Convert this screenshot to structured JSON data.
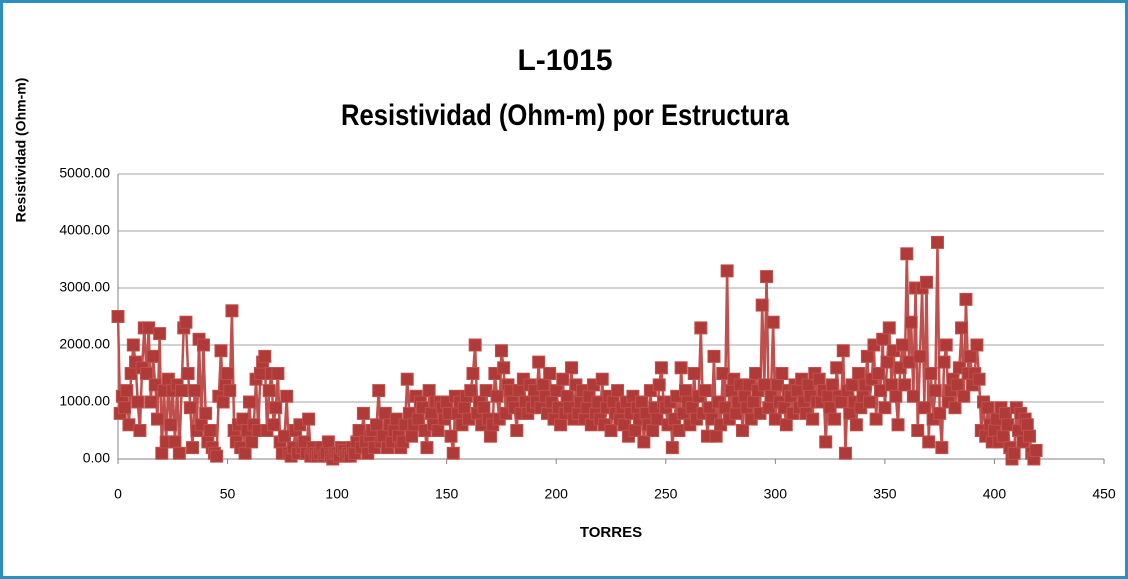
{
  "chart_data": {
    "type": "line",
    "title": "L-1015",
    "subtitle": "Resistividad (Ohm-m) por Estructura",
    "y_label": "Resistividad (Ohm-m)",
    "x_label": "TORRES",
    "xlim": [
      0,
      450
    ],
    "xticks": [
      0,
      50,
      100,
      150,
      200,
      250,
      300,
      350,
      400,
      450
    ],
    "ylim": [
      0,
      5000
    ],
    "yticks": [
      {
        "value": 0,
        "label": "0.00"
      },
      {
        "value": 1000,
        "label": "1000.00"
      },
      {
        "value": 2000,
        "label": "2000.00"
      },
      {
        "value": 3000,
        "label": "3000.00"
      },
      {
        "value": 4000,
        "label": "4000.00"
      },
      {
        "value": 5000,
        "label": "5000.00"
      }
    ],
    "grid": true,
    "x": [
      0,
      1,
      2,
      3,
      4,
      5,
      6,
      7,
      8,
      9,
      10,
      11,
      12,
      13,
      14,
      15,
      16,
      17,
      18,
      19,
      20,
      21,
      22,
      23,
      24,
      25,
      26,
      27,
      28,
      29,
      30,
      31,
      32,
      33,
      34,
      35,
      36,
      37,
      38,
      39,
      40,
      41,
      42,
      43,
      44,
      45,
      46,
      47,
      48,
      49,
      50,
      51,
      52,
      53,
      54,
      55,
      56,
      57,
      58,
      59,
      60,
      61,
      62,
      63,
      64,
      65,
      66,
      67,
      68,
      69,
      70,
      71,
      72,
      73,
      74,
      75,
      76,
      77,
      78,
      79,
      80,
      81,
      82,
      83,
      84,
      85,
      86,
      87,
      88,
      89,
      90,
      91,
      92,
      93,
      94,
      95,
      96,
      97,
      98,
      99,
      100,
      101,
      102,
      103,
      104,
      105,
      106,
      107,
      108,
      109,
      110,
      111,
      112,
      113,
      114,
      115,
      116,
      117,
      118,
      119,
      120,
      121,
      122,
      123,
      124,
      125,
      126,
      127,
      128,
      129,
      130,
      131,
      132,
      133,
      134,
      135,
      136,
      137,
      138,
      139,
      140,
      141,
      142,
      143,
      144,
      145,
      146,
      147,
      148,
      149,
      150,
      151,
      152,
      153,
      154,
      155,
      156,
      157,
      158,
      159,
      160,
      161,
      162,
      163,
      164,
      165,
      166,
      167,
      168,
      169,
      170,
      171,
      172,
      173,
      174,
      175,
      176,
      177,
      178,
      179,
      180,
      181,
      182,
      183,
      184,
      185,
      186,
      187,
      188,
      189,
      190,
      191,
      192,
      193,
      194,
      195,
      196,
      197,
      198,
      199,
      200,
      201,
      202,
      203,
      204,
      205,
      206,
      207,
      208,
      209,
      210,
      211,
      212,
      213,
      214,
      215,
      216,
      217,
      218,
      219,
      220,
      221,
      222,
      223,
      224,
      225,
      226,
      227,
      228,
      229,
      230,
      231,
      232,
      233,
      234,
      235,
      236,
      237,
      238,
      239,
      240,
      241,
      242,
      243,
      244,
      245,
      246,
      247,
      248,
      249,
      250,
      251,
      252,
      253,
      254,
      255,
      256,
      257,
      258,
      259,
      260,
      261,
      262,
      263,
      264,
      265,
      266,
      267,
      268,
      269,
      270,
      271,
      272,
      273,
      274,
      275,
      276,
      277,
      278,
      279,
      280,
      281,
      282,
      283,
      284,
      285,
      286,
      287,
      288,
      289,
      290,
      291,
      292,
      293,
      294,
      295,
      296,
      297,
      298,
      299,
      300,
      301,
      302,
      303,
      304,
      305,
      306,
      307,
      308,
      309,
      310,
      311,
      312,
      313,
      314,
      315,
      316,
      317,
      318,
      319,
      320,
      321,
      322,
      323,
      324,
      325,
      326,
      327,
      328,
      329,
      330,
      331,
      332,
      333,
      334,
      335,
      336,
      337,
      338,
      339,
      340,
      341,
      342,
      343,
      344,
      345,
      346,
      347,
      348,
      349,
      350,
      351,
      352,
      353,
      354,
      355,
      356,
      357,
      358,
      359,
      360,
      361,
      362,
      363,
      364,
      365,
      366,
      367,
      368,
      369,
      370,
      371,
      372,
      373,
      374,
      375,
      376,
      377,
      378,
      379,
      380,
      381,
      382,
      383,
      384,
      385,
      386,
      387,
      388,
      389,
      390,
      391,
      392,
      393,
      394,
      395,
      396,
      397,
      398,
      399,
      400,
      401,
      402,
      403,
      404,
      405,
      406,
      407,
      408,
      409,
      410,
      411,
      412,
      413,
      414,
      415,
      416,
      417,
      418,
      419
    ],
    "series": [
      {
        "name": "Resistividad",
        "color": "#c0504d",
        "marker_color": "#b03a37",
        "values": [
          2500,
          800,
          1100,
          900,
          1200,
          600,
          1500,
          2000,
          1700,
          1000,
          500,
          1600,
          2300,
          1500,
          2300,
          1000,
          1800,
          1300,
          700,
          2200,
          100,
          1200,
          300,
          1400,
          600,
          1200,
          300,
          1300,
          100,
          1200,
          2300,
          2400,
          1500,
          900,
          200,
          1200,
          500,
          2100,
          600,
          2000,
          800,
          300,
          500,
          200,
          100,
          50,
          1100,
          1900,
          1000,
          1300,
          1500,
          1200,
          2600,
          500,
          300,
          600,
          200,
          700,
          100,
          500,
          1000,
          300,
          600,
          1400,
          500,
          1500,
          1700,
          1800,
          500,
          1200,
          1500,
          600,
          900,
          1500,
          300,
          100,
          400,
          1100,
          100,
          50,
          200,
          500,
          100,
          600,
          200,
          300,
          100,
          700,
          50,
          200,
          100,
          50,
          100,
          200,
          50,
          100,
          300,
          50,
          0,
          100,
          100,
          50,
          200,
          150,
          50,
          100,
          50,
          200,
          100,
          300,
          500,
          200,
          800,
          300,
          100,
          400,
          500,
          200,
          600,
          1200,
          300,
          400,
          800,
          200,
          600,
          300,
          500,
          700,
          400,
          200,
          300,
          600,
          1400,
          800,
          400,
          600,
          1100,
          700,
          1000,
          900,
          500,
          200,
          1200,
          800,
          600,
          1000,
          500,
          1000,
          900,
          700,
          1000,
          800,
          400,
          100,
          1100,
          800,
          1000,
          600,
          900,
          1100,
          700,
          1200,
          1500,
          2000,
          800,
          1000,
          600,
          900,
          1200,
          700,
          400,
          600,
          1500,
          1100,
          700,
          1900,
          1600,
          800,
          1300,
          1200,
          1000,
          900,
          500,
          1200,
          800,
          1400,
          1000,
          800,
          1300,
          900,
          1200,
          1000,
          1700,
          900,
          1300,
          1100,
          800,
          1500,
          1000,
          700,
          1200,
          900,
          600,
          1400,
          800,
          1100,
          900,
          1600,
          700,
          1300,
          800,
          1000,
          1200,
          700,
          900,
          1100,
          600,
          1300,
          800,
          1000,
          700,
          1400,
          600,
          900,
          1100,
          500,
          1000,
          800,
          1200,
          700,
          900,
          600,
          1000,
          400,
          800,
          1100,
          500,
          900,
          700,
          1000,
          300,
          800,
          600,
          1200,
          500,
          900,
          700,
          1300,
          1600,
          1000,
          900,
          600,
          1000,
          200,
          700,
          1100,
          500,
          1600,
          800,
          1200,
          1000,
          600,
          900,
          1500,
          700,
          1100,
          2300,
          800,
          1200,
          400,
          900,
          700,
          1800,
          400,
          1000,
          600,
          1500,
          900,
          3300,
          700,
          1200,
          1400,
          800,
          1000,
          1300,
          500,
          1100,
          900,
          1300,
          700,
          1000,
          1500,
          1200,
          800,
          2700,
          1300,
          3200,
          900,
          1100,
          2400,
          700,
          1300,
          1000,
          1500,
          900,
          600,
          1200,
          1100,
          800,
          1300,
          1200,
          900,
          1400,
          1000,
          800,
          1300,
          1100,
          700,
          1500,
          1000,
          1400,
          1000,
          1200,
          300,
          1100,
          900,
          1300,
          700,
          1600,
          1100,
          1000,
          1900,
          100,
          1200,
          800,
          1300,
          1000,
          600,
          1500,
          900,
          1100,
          1300,
          1800,
          1000,
          1400,
          2000,
          700,
          1500,
          1200,
          2100,
          900,
          1700,
          2300,
          1300,
          1900,
          1100,
          600,
          1600,
          2000,
          1300,
          3600,
          1700,
          2400,
          1100,
          3000,
          500,
          1800,
          3000,
          900,
          3100,
          300,
          1500,
          700,
          1200,
          3800,
          800,
          200,
          1700,
          2000,
          1000,
          1200,
          1400,
          900,
          1300,
          1600,
          2300,
          1100,
          2800,
          1500,
          1800,
          1300,
          1500,
          2000,
          1400,
          500,
          1000,
          400,
          900,
          600,
          300,
          500,
          700,
          300,
          900,
          400,
          800,
          600,
          200,
          0,
          100,
          900,
          500,
          800,
          300,
          700,
          600,
          400,
          100,
          0,
          150
        ]
      }
    ]
  }
}
